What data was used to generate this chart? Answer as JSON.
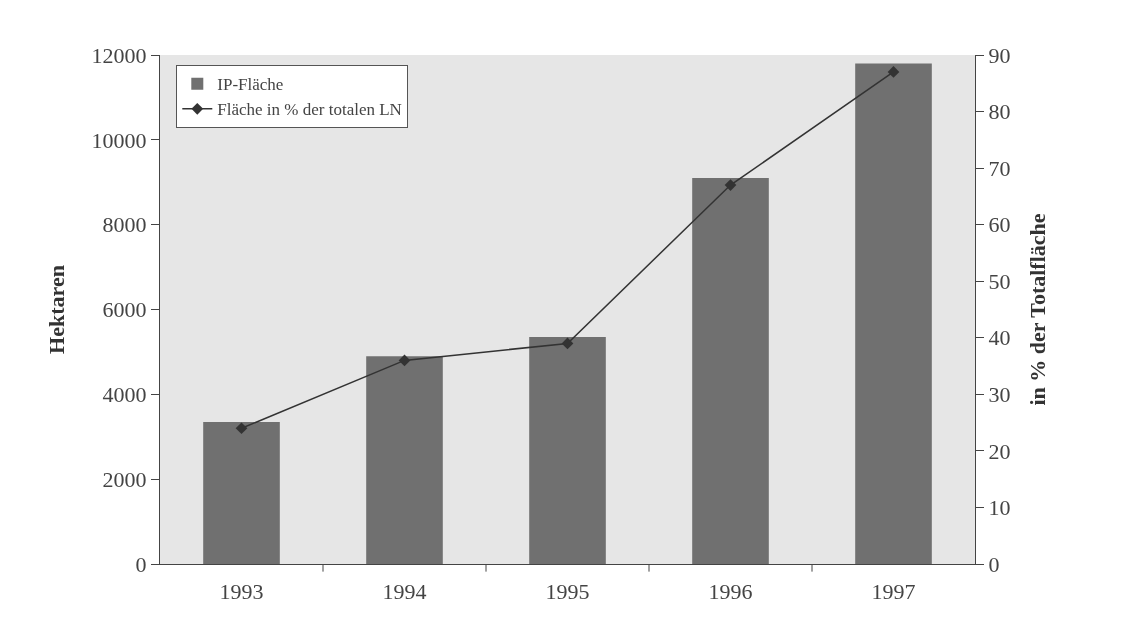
{
  "chart_data": {
    "type": "bar",
    "ylabel": "Hektaren",
    "y2label": "in % der Totalfläche",
    "categories": [
      "1993",
      "1994",
      "1995",
      "1996",
      "1997"
    ],
    "series": [
      {
        "name": "IP-Fläche",
        "color": "#707070",
        "values": [
          3350,
          4900,
          5350,
          9100,
          11800
        ]
      },
      {
        "name": "Fläche in % der totalen LN",
        "type": "line",
        "axis": "y2",
        "color": "#333333",
        "values": [
          24,
          36,
          39,
          67,
          87
        ],
        "marker": "diamond",
        "line_style": "solid"
      }
    ],
    "ylim": [
      0,
      12000
    ],
    "yticks": [
      0,
      2000,
      4000,
      6000,
      8000,
      10000,
      12000
    ],
    "y2lim": [
      0,
      90
    ],
    "y2ticks": [
      0,
      10,
      20,
      30,
      40,
      50,
      60,
      70,
      80,
      90
    ],
    "grid": false,
    "legend": "top left"
  }
}
